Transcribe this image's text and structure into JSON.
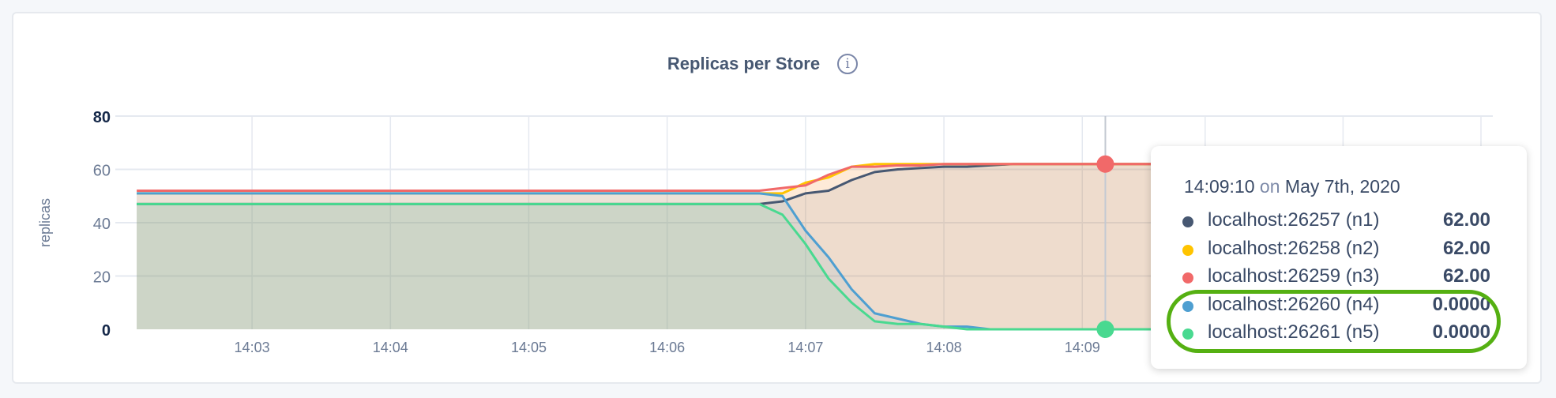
{
  "chart_data": {
    "type": "area",
    "title": "Replicas per Store",
    "ylabel": "replicas",
    "xlabel": "",
    "ylim": [
      0,
      80
    ],
    "yticks": [
      "0",
      "20",
      "40",
      "60",
      "80"
    ],
    "xlim": [
      "14:02:11",
      "14:11:58"
    ],
    "xticks": [
      "14:03",
      "14:04",
      "14:05",
      "14:06",
      "14:07",
      "14:08",
      "14:09"
    ],
    "grid": true,
    "x": [
      "14:02:10",
      "14:06:40",
      "14:06:50",
      "14:07:00",
      "14:07:10",
      "14:07:20",
      "14:07:30",
      "14:07:40",
      "14:07:50",
      "14:08:00",
      "14:08:10",
      "14:08:20",
      "14:08:30",
      "14:11:58"
    ],
    "series": [
      {
        "name": "localhost:26257 (n1)",
        "color": "#475872",
        "values": [
          47,
          47,
          48,
          51,
          52,
          56,
          59,
          60,
          60.5,
          61,
          61,
          61.5,
          62,
          62
        ]
      },
      {
        "name": "localhost:26258 (n2)",
        "color": "#ffc400",
        "values": [
          51,
          51,
          51,
          55,
          57,
          61,
          62,
          62,
          62,
          62,
          62,
          62,
          62,
          62
        ]
      },
      {
        "name": "localhost:26259 (n3)",
        "color": "#f16969",
        "values": [
          52,
          52,
          53,
          54,
          58,
          61,
          61,
          61.5,
          61.5,
          62,
          62,
          62,
          62,
          62
        ]
      },
      {
        "name": "localhost:26260 (n4)",
        "color": "#4e9fd1",
        "values": [
          51,
          51,
          50,
          37,
          27,
          15,
          6,
          4,
          2,
          1,
          1,
          0,
          0,
          0
        ]
      },
      {
        "name": "localhost:26261 (n5)",
        "color": "#49d990",
        "values": [
          47,
          47,
          43,
          32,
          19,
          10,
          3,
          2,
          2,
          1,
          0,
          0,
          0,
          0
        ]
      }
    ],
    "hover": {
      "time": "14:09:10"
    }
  },
  "tooltip": {
    "time": "14:09:10",
    "on": "on",
    "date": "May 7th, 2020",
    "rows": [
      {
        "label": "localhost:26257 (n1)",
        "value": "62.00",
        "color": "#475872"
      },
      {
        "label": "localhost:26258 (n2)",
        "value": "62.00",
        "color": "#ffc400"
      },
      {
        "label": "localhost:26259 (n3)",
        "value": "62.00",
        "color": "#f16969"
      },
      {
        "label": "localhost:26260 (n4)",
        "value": "0.0000",
        "color": "#4e9fd1"
      },
      {
        "label": "localhost:26261 (n5)",
        "value": "0.0000",
        "color": "#49d990"
      }
    ],
    "highlight_color": "#55b012"
  },
  "info_icon": "info-circle-icon"
}
